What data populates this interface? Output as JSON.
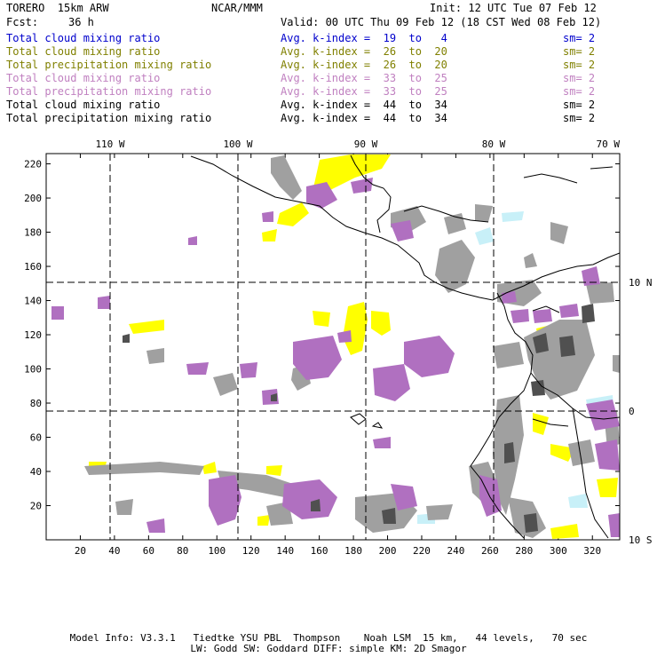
{
  "header": {
    "model_name": "TORERO  15km ARW",
    "org": "NCAR/MMM",
    "init": "Init: 12 UTC Tue 07 Feb 12",
    "fcst_label": "Fcst:",
    "fcst_hours": "36 h",
    "valid": "Valid: 00 UTC Thu 09 Feb 12 (18 CST Wed 08 Feb 12)"
  },
  "legend": [
    {
      "field": "Total cloud mixing ratio",
      "kindex": "Avg. k-index =  19  to   4",
      "sm": "sm= 2",
      "color": "#0000cc"
    },
    {
      "field": "Total cloud mixing ratio",
      "kindex": "Avg. k-index =  26  to  20",
      "sm": "sm= 2",
      "color": "#808000"
    },
    {
      "field": "Total precipitation mixing ratio",
      "kindex": "Avg. k-index =  26  to  20",
      "sm": "sm= 2",
      "color": "#808000"
    },
    {
      "field": "Total cloud mixing ratio",
      "kindex": "Avg. k-index =  33  to  25",
      "sm": "sm= 2",
      "color": "#c080c0"
    },
    {
      "field": "Total precipitation mixing ratio",
      "kindex": "Avg. k-index =  33  to  25",
      "sm": "sm= 2",
      "color": "#c080c0"
    },
    {
      "field": "Total cloud mixing ratio",
      "kindex": "Avg. k-index =  44  to  34",
      "sm": "sm= 2",
      "color": "#000000"
    },
    {
      "field": "Total precipitation mixing ratio",
      "kindex": "Avg. k-index =  44  to  34",
      "sm": "sm= 2",
      "color": "#000000"
    }
  ],
  "map": {
    "top_lon_labels": [
      "110 W",
      "100 W",
      "90 W",
      "80 W",
      "70 W"
    ],
    "right_lat_labels": [
      "10 N",
      "0",
      "10 S"
    ],
    "x_ticks": [
      "20",
      "40",
      "60",
      "80",
      "100",
      "120",
      "140",
      "160",
      "180",
      "200",
      "220",
      "240",
      "260",
      "280",
      "300",
      "320"
    ],
    "y_ticks": [
      "20",
      "40",
      "60",
      "80",
      "100",
      "120",
      "140",
      "160",
      "180",
      "200",
      "220"
    ],
    "colors": {
      "yellow": "#ffff00",
      "gray": "#a0a0a0",
      "purple": "#b070c0",
      "light_cyan": "#c8f0f8",
      "dark_gray": "#505050",
      "coast": "#000000"
    }
  },
  "footer": {
    "line1": "Model Info: V3.3.1   Tiedtke YSU PBL  Thompson    Noah LSM  15 km,   44 levels,   70 sec",
    "line2": "LW: Godd SW: Goddard DIFF: simple KM: 2D Smagor"
  }
}
